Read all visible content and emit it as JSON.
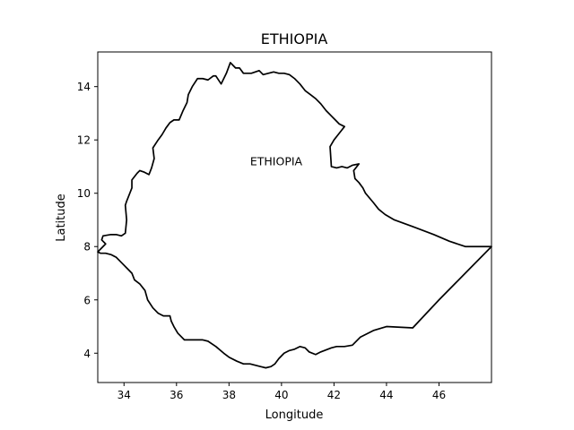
{
  "chart_data": {
    "type": "line",
    "title": "ETHIOPIA",
    "xlabel": "Longitude",
    "ylabel": "Latitude",
    "xlim": [
      33.0,
      48.0
    ],
    "ylim": [
      2.9,
      15.3
    ],
    "xticks": [
      34,
      36,
      38,
      40,
      42,
      44,
      46
    ],
    "yticks": [
      4,
      6,
      8,
      10,
      12,
      14
    ],
    "grid": false,
    "annotations": [
      {
        "text": "ETHIOPIA",
        "x": 39.8,
        "y": 11.2
      }
    ],
    "series": [
      {
        "color": "#000000",
        "x": [
          33.0,
          33.15,
          33.3,
          33.15,
          33.2,
          33.5,
          33.7,
          33.9,
          34.05,
          34.1,
          34.05,
          34.1,
          34.3,
          34.3,
          34.5,
          34.6,
          34.75,
          34.95,
          35.05,
          35.15,
          35.1,
          35.3,
          35.45,
          35.6,
          35.75,
          35.9,
          36.1,
          36.25,
          36.4,
          36.45,
          36.6,
          36.8,
          37.0,
          37.2,
          37.4,
          37.5,
          37.7,
          37.9,
          38.05,
          38.25,
          38.4,
          38.55,
          38.75,
          38.85,
          39.0,
          39.15,
          39.3,
          39.5,
          39.7,
          39.9,
          40.1,
          40.3,
          40.5,
          40.7,
          40.9,
          41.1,
          41.3,
          41.5,
          41.7,
          41.9,
          42.05,
          42.2,
          42.4,
          42.2,
          42.0,
          41.85,
          41.9,
          42.1,
          42.3,
          42.5,
          42.7,
          42.95,
          42.75,
          42.8,
          42.95,
          43.1,
          43.2,
          43.5,
          43.7,
          43.95,
          44.3,
          45.0,
          45.8,
          46.4,
          47.0,
          48.0,
          47.0,
          46.0,
          45.0,
          44.0,
          43.5,
          43.0,
          42.7,
          42.4,
          42.1,
          41.9,
          41.5,
          41.3,
          41.05,
          40.9,
          40.7,
          40.5,
          40.3,
          40.1,
          39.9,
          39.75,
          39.6,
          39.4,
          39.2,
          39.0,
          38.8,
          38.55,
          38.3,
          38.0,
          37.8,
          37.5,
          37.2,
          37.0,
          36.8,
          36.5,
          36.3,
          36.05,
          35.9,
          35.8,
          35.75,
          35.5,
          35.3,
          35.1,
          34.9,
          34.8,
          34.6,
          34.4,
          34.3,
          34.15,
          33.9,
          33.7,
          33.5,
          33.3,
          33.1,
          33.0
        ],
        "y": [
          7.8,
          7.95,
          8.1,
          8.25,
          8.4,
          8.45,
          8.45,
          8.4,
          8.5,
          9.0,
          9.55,
          9.7,
          10.2,
          10.5,
          10.75,
          10.85,
          10.8,
          10.7,
          10.95,
          11.3,
          11.7,
          12.0,
          12.2,
          12.45,
          12.65,
          12.75,
          12.75,
          13.1,
          13.4,
          13.7,
          14.0,
          14.3,
          14.3,
          14.25,
          14.4,
          14.4,
          14.1,
          14.5,
          14.9,
          14.7,
          14.7,
          14.5,
          14.5,
          14.5,
          14.55,
          14.6,
          14.45,
          14.5,
          14.55,
          14.5,
          14.5,
          14.45,
          14.3,
          14.1,
          13.85,
          13.7,
          13.55,
          13.35,
          13.1,
          12.9,
          12.75,
          12.6,
          12.5,
          12.25,
          12.0,
          11.75,
          11.0,
          10.95,
          11.0,
          10.95,
          11.05,
          11.1,
          10.85,
          10.55,
          10.4,
          10.2,
          10.0,
          9.65,
          9.4,
          9.2,
          9.0,
          8.75,
          8.45,
          8.2,
          8.0,
          8.0,
          7.0,
          6.0,
          4.95,
          5.0,
          4.85,
          4.6,
          4.3,
          4.25,
          4.25,
          4.2,
          4.05,
          3.95,
          4.05,
          4.2,
          4.25,
          4.15,
          4.1,
          4.0,
          3.8,
          3.6,
          3.5,
          3.45,
          3.5,
          3.55,
          3.6,
          3.6,
          3.7,
          3.85,
          4.0,
          4.25,
          4.45,
          4.5,
          4.5,
          4.5,
          4.5,
          4.75,
          5.0,
          5.2,
          5.4,
          5.4,
          5.5,
          5.7,
          6.0,
          6.35,
          6.6,
          6.75,
          7.0,
          7.15,
          7.4,
          7.6,
          7.7,
          7.75,
          7.75,
          7.8
        ]
      }
    ]
  }
}
